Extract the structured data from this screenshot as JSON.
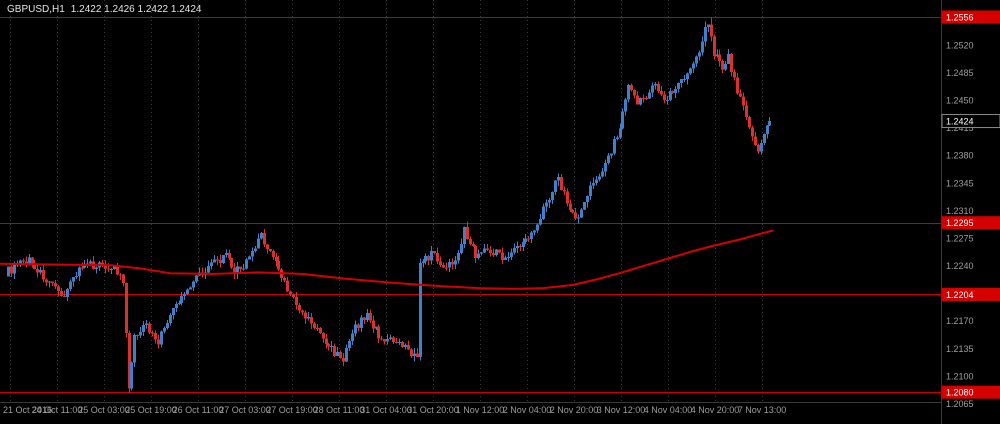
{
  "window": {
    "title_symbol": "GBPUSD,H1",
    "title_quote": "1.2422 1.2426 1.2422 1.2424"
  },
  "chart_data": {
    "type": "candlestick",
    "symbol": "GBPUSD",
    "timeframe": "H1",
    "ohlc_display": {
      "open": "1.2422",
      "high": "1.2426",
      "low": "1.2422",
      "close": "1.2424"
    },
    "current": {
      "price": 1.2424,
      "label": "1.2424"
    },
    "price_axis": {
      "min": 1.2065,
      "max": 1.2556,
      "ticks": [
        "1.2520",
        "1.2485",
        "1.2450",
        "1.2415",
        "1.2380",
        "1.2345",
        "1.2310",
        "1.2275",
        "1.2240",
        "1.2170",
        "1.2135",
        "1.2100",
        "1.2065"
      ]
    },
    "time_axis": {
      "labels": [
        "21 Oct 2016",
        "24 Oct 11:00",
        "25 Oct 03:00",
        "25 Oct 19:00",
        "26 Oct 11:00",
        "27 Oct 03:00",
        "27 Oct 19:00",
        "28 Oct 11:00",
        "31 Oct 04:00",
        "31 Oct 20:00",
        "1 Nov 12:00",
        "2 Nov 04:00",
        "2 Nov 20:00",
        "3 Nov 12:00",
        "4 Nov 04:00",
        "4 Nov 20:00",
        "7 Nov 13:00"
      ]
    },
    "hlines": [
      {
        "price": 1.2556,
        "label": "1.2556"
      },
      {
        "price": 1.2295,
        "label": "1.2295"
      },
      {
        "price": 1.2204,
        "label": "1.2204"
      },
      {
        "price": 1.208,
        "label": "1.2080"
      }
    ],
    "candles": {
      "count": 260,
      "price_path": [
        [
          0,
          1.2232
        ],
        [
          8,
          1.2248
        ],
        [
          14,
          1.2222
        ],
        [
          19,
          1.22
        ],
        [
          25,
          1.2238
        ],
        [
          31,
          1.2242
        ],
        [
          37,
          1.2238
        ],
        [
          40,
          1.2218
        ],
        [
          42,
          1.2085
        ],
        [
          44,
          1.2148
        ],
        [
          47,
          1.2168
        ],
        [
          52,
          1.2145
        ],
        [
          56,
          1.2178
        ],
        [
          60,
          1.22
        ],
        [
          65,
          1.2228
        ],
        [
          70,
          1.2242
        ],
        [
          75,
          1.2252
        ],
        [
          78,
          1.2232
        ],
        [
          83,
          1.2248
        ],
        [
          87,
          1.2278
        ],
        [
          91,
          1.2252
        ],
        [
          96,
          1.2212
        ],
        [
          100,
          1.2182
        ],
        [
          104,
          1.2168
        ],
        [
          110,
          1.2138
        ],
        [
          115,
          1.2122
        ],
        [
          119,
          1.2162
        ],
        [
          123,
          1.2178
        ],
        [
          127,
          1.2152
        ],
        [
          132,
          1.2142
        ],
        [
          136,
          1.2136
        ],
        [
          139,
          1.2128
        ],
        [
          140,
          1.2128
        ],
        [
          141,
          1.224
        ],
        [
          145,
          1.2256
        ],
        [
          150,
          1.2238
        ],
        [
          153,
          1.225
        ],
        [
          156,
          1.2285
        ],
        [
          160,
          1.2255
        ],
        [
          165,
          1.2262
        ],
        [
          169,
          1.2252
        ],
        [
          173,
          1.226
        ],
        [
          178,
          1.2275
        ],
        [
          182,
          1.2305
        ],
        [
          188,
          1.2352
        ],
        [
          192,
          1.2312
        ],
        [
          195,
          1.23
        ],
        [
          198,
          1.233
        ],
        [
          201,
          1.2352
        ],
        [
          205,
          1.2378
        ],
        [
          209,
          1.2415
        ],
        [
          212,
          1.2465
        ],
        [
          215,
          1.2448
        ],
        [
          218,
          1.2458
        ],
        [
          221,
          1.247
        ],
        [
          224,
          1.2452
        ],
        [
          228,
          1.2468
        ],
        [
          231,
          1.2482
        ],
        [
          235,
          1.2502
        ],
        [
          237,
          1.2528
        ],
        [
          239,
          1.2552
        ],
        [
          241,
          1.2512
        ],
        [
          244,
          1.2492
        ],
        [
          246,
          1.2505
        ],
        [
          249,
          1.2462
        ],
        [
          252,
          1.2432
        ],
        [
          254,
          1.2405
        ],
        [
          256,
          1.2382
        ],
        [
          258,
          1.2408
        ],
        [
          260,
          1.2424
        ]
      ],
      "specials": {
        "42": {
          "low": 1.2082
        },
        "239": {
          "high": 1.2556
        }
      }
    },
    "ma": {
      "path": [
        [
          -3,
          1.2243
        ],
        [
          15,
          1.2242
        ],
        [
          35,
          1.2241
        ],
        [
          45,
          1.2237
        ],
        [
          55,
          1.2231
        ],
        [
          70,
          1.223
        ],
        [
          85,
          1.2232
        ],
        [
          100,
          1.223
        ],
        [
          115,
          1.2224
        ],
        [
          130,
          1.2219
        ],
        [
          145,
          1.2215
        ],
        [
          160,
          1.2212
        ],
        [
          172,
          1.2211
        ],
        [
          182,
          1.2212
        ],
        [
          192,
          1.2216
        ],
        [
          200,
          1.2223
        ],
        [
          208,
          1.2231
        ],
        [
          216,
          1.224
        ],
        [
          224,
          1.2249
        ],
        [
          232,
          1.2258
        ],
        [
          240,
          1.2266
        ],
        [
          248,
          1.2273
        ],
        [
          254,
          1.2279
        ],
        [
          260,
          1.2285
        ]
      ]
    },
    "colors": {
      "bg": "#000000",
      "grid": "#3a3a3a",
      "bull": "#4180c9",
      "bear": "#d93030",
      "hline": "#cc0000",
      "ma": "#d40000",
      "axis_text": "#9e9e9e",
      "label_box": "#d40000",
      "current_box_bg": "#000000",
      "current_box_border": "#8c8c8c",
      "separator": "#3a3a3a"
    }
  }
}
